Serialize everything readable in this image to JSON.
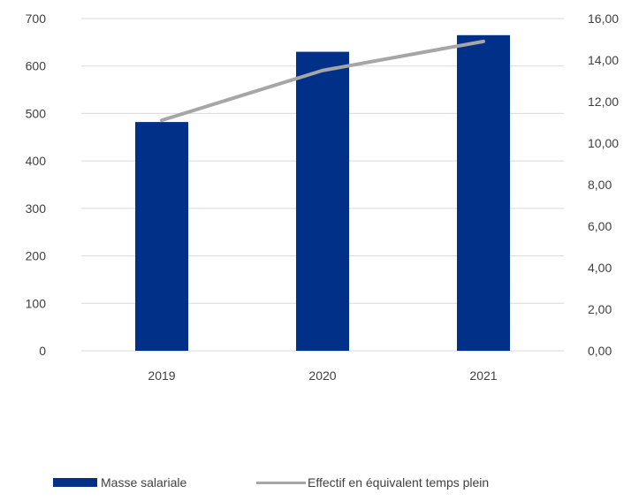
{
  "chart_data": {
    "type": "bar",
    "categories": [
      "2019",
      "2020",
      "2021"
    ],
    "series": [
      {
        "name": "Masse salariale",
        "type": "bar",
        "axis": "left",
        "color": "#003087",
        "values": [
          482,
          630,
          665
        ]
      },
      {
        "name": "Effectif en équivalent temps plein",
        "type": "line",
        "axis": "right",
        "color": "#a6a6a6",
        "values": [
          11.1,
          13.5,
          14.9
        ]
      }
    ],
    "y_left": {
      "ylim": [
        0,
        700
      ],
      "ticks": [
        "0",
        "100",
        "200",
        "300",
        "400",
        "500",
        "600",
        "700"
      ]
    },
    "y_right": {
      "ylim": [
        0,
        16
      ],
      "ticks": [
        "0,00",
        "2,00",
        "4,00",
        "6,00",
        "8,00",
        "10,00",
        "12,00",
        "14,00",
        "16,00"
      ]
    },
    "grid": true,
    "legend_position": "bottom",
    "title": "",
    "xlabel": "",
    "ylabel": ""
  }
}
